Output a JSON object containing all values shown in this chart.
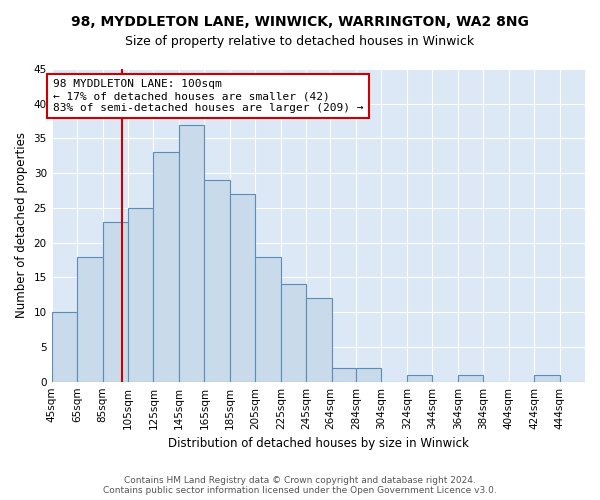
{
  "title": "98, MYDDLETON LANE, WINWICK, WARRINGTON, WA2 8NG",
  "subtitle": "Size of property relative to detached houses in Winwick",
  "xlabel": "Distribution of detached houses by size in Winwick",
  "ylabel": "Number of detached properties",
  "bar_labels": [
    "45sqm",
    "65sqm",
    "85sqm",
    "105sqm",
    "125sqm",
    "145sqm",
    "165sqm",
    "185sqm",
    "205sqm",
    "225sqm",
    "245sqm",
    "264sqm",
    "284sqm",
    "304sqm",
    "324sqm",
    "344sqm",
    "364sqm",
    "384sqm",
    "404sqm",
    "424sqm",
    "444sqm"
  ],
  "bar_values": [
    10,
    18,
    23,
    25,
    33,
    37,
    29,
    27,
    18,
    14,
    12,
    2,
    2,
    0,
    1,
    0,
    1,
    0,
    0,
    1,
    0
  ],
  "bar_color": "#c9daea",
  "bar_edge_color": "#5b8db8",
  "bin_edges": [
    45,
    65,
    85,
    105,
    125,
    145,
    165,
    185,
    205,
    225,
    245,
    265,
    284,
    304,
    324,
    344,
    364,
    384,
    404,
    424,
    444,
    464
  ],
  "vline_x": 100,
  "vline_color": "#cc0000",
  "annotation_line1": "98 MYDDLETON LANE: 100sqm",
  "annotation_line2": "← 17% of detached houses are smaller (42)",
  "annotation_line3": "83% of semi-detached houses are larger (209) →",
  "annotation_box_color": "#ffffff",
  "annotation_box_edge_color": "#cc0000",
  "ylim": [
    0,
    45
  ],
  "yticks": [
    0,
    5,
    10,
    15,
    20,
    25,
    30,
    35,
    40,
    45
  ],
  "footer_line1": "Contains HM Land Registry data © Crown copyright and database right 2024.",
  "footer_line2": "Contains public sector information licensed under the Open Government Licence v3.0.",
  "fig_bg_color": "#ffffff",
  "plot_bg_color": "#dce8f5",
  "grid_color": "#ffffff",
  "title_fontsize": 10,
  "subtitle_fontsize": 9,
  "axis_label_fontsize": 8.5,
  "tick_fontsize": 7.5,
  "annotation_fontsize": 8,
  "footer_fontsize": 6.5
}
